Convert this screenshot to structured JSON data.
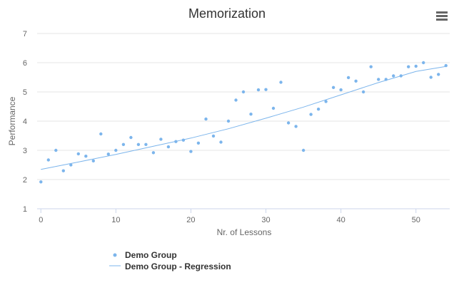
{
  "chart_data": {
    "type": "scatter",
    "title": "Memorization",
    "xlabel": "Nr. of Lessons",
    "ylabel": "Performance",
    "xlim": [
      -0.5,
      54.5
    ],
    "ylim": [
      1,
      7
    ],
    "x_ticks": [
      0,
      10,
      20,
      30,
      40,
      50
    ],
    "y_ticks": [
      1,
      2,
      3,
      4,
      5,
      6,
      7
    ],
    "grid": "horizontal",
    "legend": "bottom-left",
    "series": [
      {
        "name": "Demo Group",
        "type": "scatter",
        "color": "#7cb5ec",
        "points": [
          [
            0,
            1.92
          ],
          [
            1,
            2.67
          ],
          [
            2,
            3.0
          ],
          [
            3,
            2.3
          ],
          [
            4,
            2.5
          ],
          [
            5,
            2.88
          ],
          [
            6,
            2.8
          ],
          [
            7,
            2.64
          ],
          [
            8,
            3.56
          ],
          [
            9,
            2.87
          ],
          [
            10,
            3.0
          ],
          [
            11,
            3.2
          ],
          [
            12,
            3.44
          ],
          [
            13,
            3.2
          ],
          [
            14,
            3.2
          ],
          [
            15,
            2.92
          ],
          [
            16,
            3.38
          ],
          [
            17,
            3.12
          ],
          [
            18,
            3.3
          ],
          [
            19,
            3.35
          ],
          [
            20,
            2.96
          ],
          [
            21,
            3.25
          ],
          [
            22,
            4.07
          ],
          [
            23,
            3.49
          ],
          [
            24,
            3.28
          ],
          [
            25,
            4.0
          ],
          [
            26,
            4.72
          ],
          [
            27,
            5.0
          ],
          [
            28,
            4.24
          ],
          [
            29,
            5.07
          ],
          [
            30,
            5.08
          ],
          [
            31,
            4.44
          ],
          [
            32,
            5.33
          ],
          [
            33,
            3.94
          ],
          [
            34,
            3.82
          ],
          [
            35,
            3.0
          ],
          [
            36,
            4.23
          ],
          [
            37,
            4.41
          ],
          [
            38,
            4.67
          ],
          [
            39,
            5.15
          ],
          [
            40,
            5.07
          ],
          [
            41,
            5.49
          ],
          [
            42,
            5.37
          ],
          [
            43,
            5.0
          ],
          [
            44,
            5.86
          ],
          [
            45,
            5.43
          ],
          [
            46,
            5.43
          ],
          [
            47,
            5.55
          ],
          [
            48,
            5.55
          ],
          [
            49,
            5.86
          ],
          [
            50,
            5.88
          ],
          [
            51,
            6.0
          ],
          [
            52,
            5.5
          ],
          [
            53,
            5.6
          ],
          [
            54,
            5.9
          ]
        ]
      },
      {
        "name": "Demo Group - Regression",
        "type": "line",
        "color": "#7cb5ec",
        "points": [
          [
            0,
            2.35
          ],
          [
            5,
            2.6
          ],
          [
            10,
            2.86
          ],
          [
            15,
            3.14
          ],
          [
            20,
            3.42
          ],
          [
            25,
            3.74
          ],
          [
            30,
            4.1
          ],
          [
            35,
            4.48
          ],
          [
            40,
            4.9
          ],
          [
            45,
            5.32
          ],
          [
            50,
            5.7
          ],
          [
            54,
            5.87
          ]
        ]
      }
    ]
  },
  "menu": {
    "icon": "hamburger-menu-icon"
  }
}
